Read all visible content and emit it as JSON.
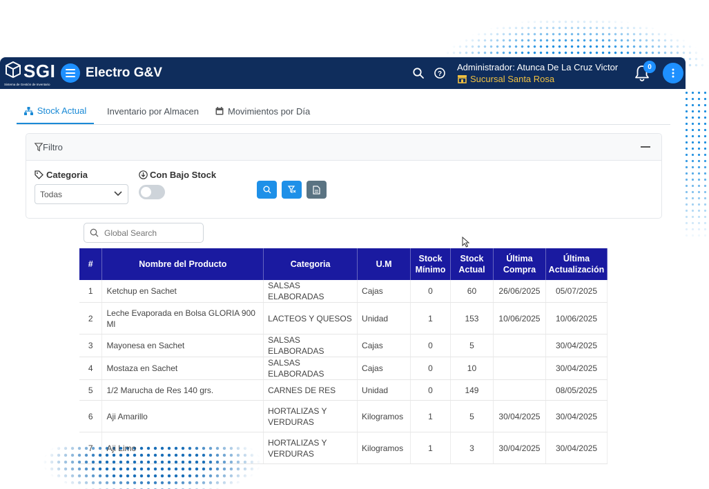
{
  "header": {
    "logo_text": "SGI",
    "logo_subtitle": "Sistema de Gestión de Inventario",
    "company": "Electro G&V",
    "user": "Administrador: Atunca De La Cruz Victor",
    "branch": "Sucursal Santa Rosa",
    "notifications": "0",
    "colors": {
      "bar": "#0f2d5c",
      "accent": "#1e90ff",
      "branch": "#f0c040"
    }
  },
  "tabs": [
    {
      "label": "Stock Actual",
      "icon": "sitemap-icon",
      "active": true
    },
    {
      "label": "Inventario por Almacen",
      "icon": "",
      "active": false
    },
    {
      "label": "Movimientos por Día",
      "icon": "calendar-icon",
      "active": false
    }
  ],
  "filter": {
    "title": "Filtro",
    "category_label": "Categoria",
    "category_value": "Todas",
    "low_stock_label": "Con Bajo Stock",
    "low_stock_on": false
  },
  "search": {
    "placeholder": "Global Search"
  },
  "table": {
    "header_color": "#1a1aa0",
    "columns": [
      "#",
      "Nombre del Producto",
      "Categoria",
      "U.M",
      "Stock Mínimo",
      "Stock Actual",
      "Última Compra",
      "Última Actualización"
    ],
    "rows": [
      [
        "1",
        "Ketchup en Sachet",
        "SALSAS ELABORADAS",
        "Cajas",
        "0",
        "60",
        "26/06/2025",
        "05/07/2025"
      ],
      [
        "2",
        "Leche Evaporada en Bolsa GLORIA 900 Ml",
        "LACTEOS Y QUESOS",
        "Unidad",
        "1",
        "153",
        "10/06/2025",
        "10/06/2025"
      ],
      [
        "3",
        "Mayonesa en Sachet",
        "SALSAS ELABORADAS",
        "Cajas",
        "0",
        "5",
        "",
        "30/04/2025"
      ],
      [
        "4",
        "Mostaza en Sachet",
        "SALSAS ELABORADAS",
        "Cajas",
        "0",
        "10",
        "",
        "30/04/2025"
      ],
      [
        "5",
        "1/2 Marucha de Res 140 grs.",
        "CARNES DE RES",
        "Unidad",
        "0",
        "149",
        "",
        "08/05/2025"
      ],
      [
        "6",
        "Aji Amarillo",
        "HORTALIZAS Y VERDURAS",
        "Kilogramos",
        "1",
        "5",
        "30/04/2025",
        "30/04/2025"
      ],
      [
        "7",
        "Aji Limo",
        "HORTALIZAS Y VERDURAS",
        "Kilogramos",
        "1",
        "3",
        "30/04/2025",
        "30/04/2025"
      ]
    ]
  }
}
